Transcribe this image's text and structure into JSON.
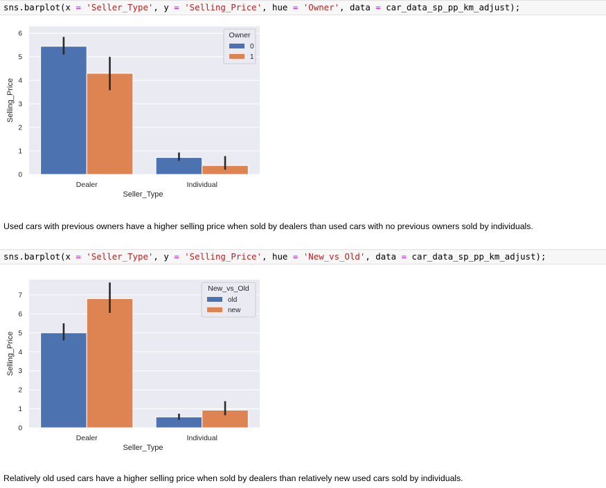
{
  "cells": [
    {
      "code": {
        "fn": "sns.barplot(",
        "x_kw": "x",
        "x_val": "'Seller_Type'",
        "y_kw": "y",
        "y_val": "'Selling_Price'",
        "hue_kw": "hue",
        "hue_val": "'Owner'",
        "data_kw": "data",
        "data_val": "car_data_sp_pp_km_adjust);"
      },
      "note": "Used cars with previous owners have a higher selling price when sold by dealers than used cars with no previous owners sold by individuals."
    },
    {
      "code": {
        "fn": "sns.barplot(",
        "x_kw": "x",
        "x_val": "'Seller_Type'",
        "y_kw": "y",
        "y_val": "'Selling_Price'",
        "hue_kw": "hue",
        "hue_val": "'New_vs_Old'",
        "data_kw": "data",
        "data_val": "car_data_sp_pp_km_adjust);"
      },
      "note": "Relatively old used cars have a higher selling price when sold by dealers than relatively new used cars sold by individuals."
    }
  ],
  "colors": {
    "series0": "#4c72b0",
    "series1": "#dd8452",
    "plot_bg": "#eaeaf2",
    "grid": "#ffffff",
    "errbar": "#2a2a2a"
  },
  "chart_data": [
    {
      "type": "bar",
      "categories": [
        "Dealer",
        "Individual"
      ],
      "xlabel": "Seller_Type",
      "ylabel": "Selling_Price",
      "ylim": [
        0,
        6.3
      ],
      "yticks": [
        0,
        1,
        2,
        3,
        4,
        5,
        6
      ],
      "grid": true,
      "legend": {
        "title": "Owner",
        "placement": "top-right"
      },
      "series": [
        {
          "name": "0",
          "values": [
            5.45,
            0.72
          ],
          "ci": [
            [
              5.1,
              5.85
            ],
            [
              0.58,
              0.93
            ]
          ]
        },
        {
          "name": "1",
          "values": [
            4.3,
            0.38
          ],
          "ci": [
            [
              3.58,
              5.0
            ],
            [
              0.2,
              0.78
            ]
          ]
        }
      ]
    },
    {
      "type": "bar",
      "categories": [
        "Dealer",
        "Individual"
      ],
      "xlabel": "Seller_Type",
      "ylabel": "Selling_Price",
      "ylim": [
        0,
        7.8
      ],
      "yticks": [
        0,
        1,
        2,
        3,
        4,
        5,
        6,
        7
      ],
      "grid": true,
      "legend": {
        "title": "New_vs_Old",
        "placement": "top-right"
      },
      "series": [
        {
          "name": "old",
          "values": [
            5.0,
            0.57
          ],
          "ci": [
            [
              4.6,
              5.5
            ],
            [
              0.42,
              0.74
            ]
          ]
        },
        {
          "name": "new",
          "values": [
            6.8,
            0.93
          ],
          "ci": [
            [
              6.05,
              7.65
            ],
            [
              0.66,
              1.4
            ]
          ]
        }
      ]
    }
  ]
}
